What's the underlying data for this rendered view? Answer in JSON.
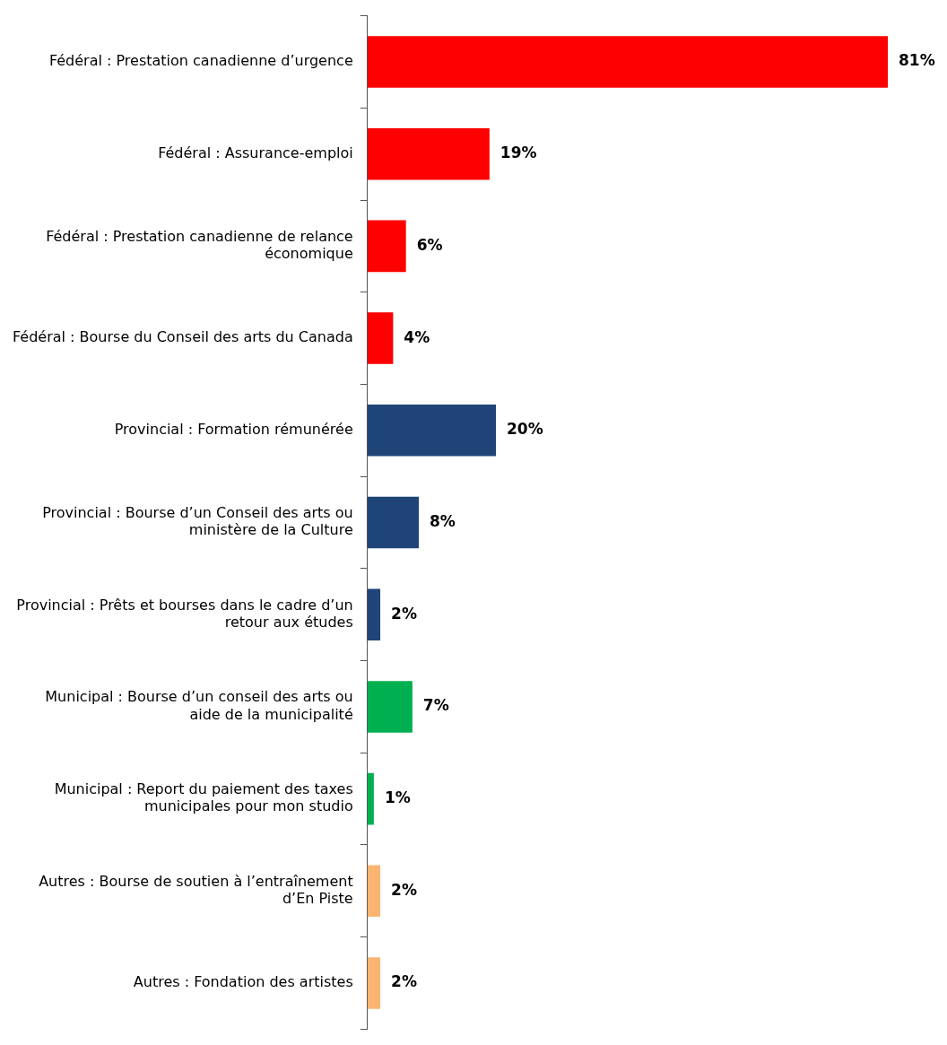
{
  "chart_data": {
    "type": "bar",
    "orientation": "horizontal",
    "categories": [
      "Fédéral : Prestation canadienne d’urgence",
      "Fédéral : Assurance-emploi",
      "Fédéral : Prestation canadienne de relance économique",
      "Fédéral : Bourse du Conseil des arts du Canada",
      "Provincial : Formation rémunérée",
      "Provincial : Bourse d’un Conseil des arts ou ministère de la Culture",
      "Provincial : Prêts et bourses dans le cadre d’un retour aux études",
      "Municipal : Bourse d’un conseil des arts ou aide de la municipalité",
      "Municipal : Report du paiement des taxes municipales pour mon studio",
      "Autres : Bourse de soutien à l’entraînement d’En Piste",
      "Autres : Fondation des artistes"
    ],
    "values": [
      81,
      19,
      6,
      4,
      20,
      8,
      2,
      7,
      1,
      2,
      2
    ],
    "colors": [
      "#ff0000",
      "#ff0000",
      "#ff0000",
      "#ff0000",
      "#1f4478",
      "#1f4478",
      "#1f4478",
      "#00b050",
      "#00b050",
      "#fab472",
      "#fab472"
    ],
    "value_labels": [
      "81%",
      "19%",
      "6%",
      "4%",
      "20%",
      "8%",
      "2%",
      "7%",
      "1%",
      "2%",
      "2%"
    ],
    "xlim": [
      0,
      81
    ],
    "grid": false,
    "legend": false
  }
}
